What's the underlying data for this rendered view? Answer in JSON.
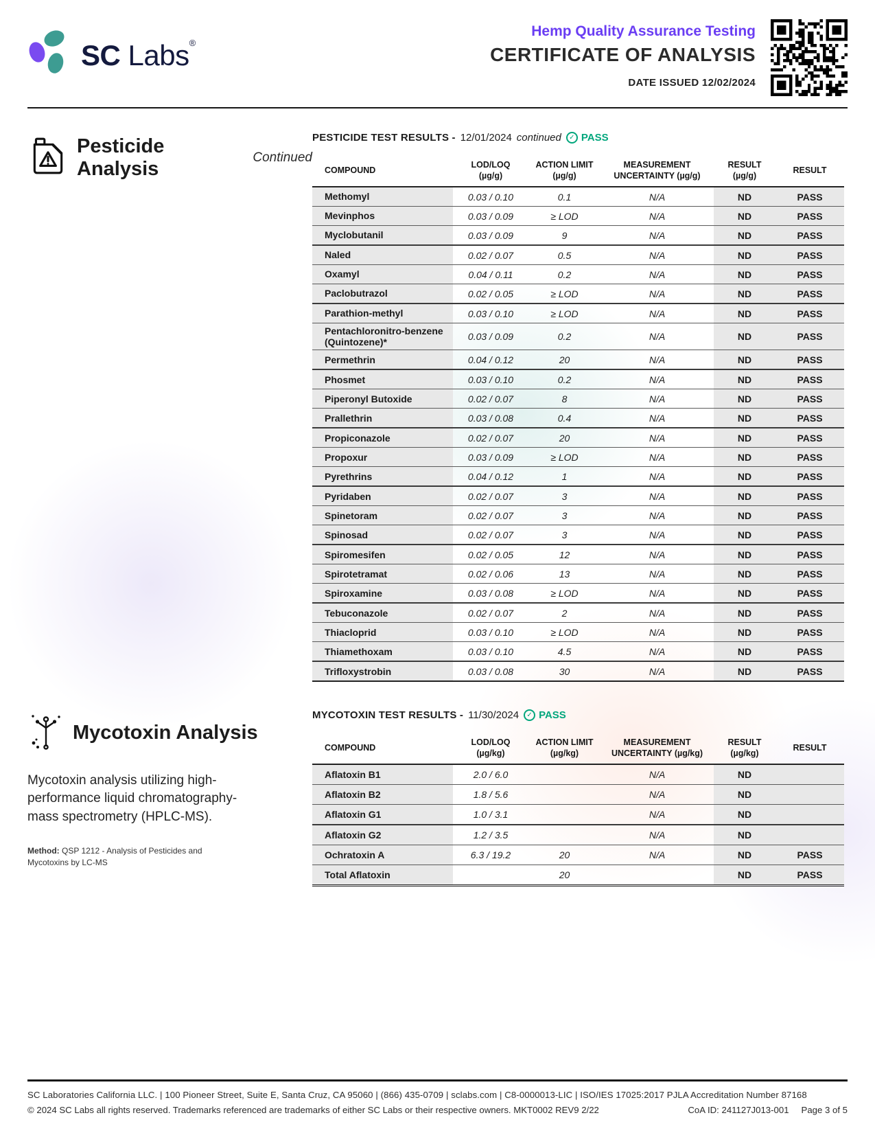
{
  "brand": {
    "name_bold": "SC",
    "name_light": "Labs",
    "reg_mark": "®"
  },
  "header": {
    "program_title": "Hemp Quality Assurance Testing",
    "doc_title": "CERTIFICATE OF ANALYSIS",
    "date_issued": "DATE ISSUED 12/02/2024"
  },
  "colors": {
    "accent_purple": "#6a3df3",
    "accent_green": "#00a67c",
    "brand_teal": "#3d9c92",
    "brand_purple": "#7a4bf0",
    "brand_navy": "#141a3e"
  },
  "pesticide": {
    "section_title": "Pesticide Analysis",
    "section_subtitle": "Continued",
    "results_title": "PESTICIDE TEST RESULTS -",
    "results_date": "12/01/2024",
    "results_suffix": "continued",
    "status": "PASS",
    "check_glyph": "✓",
    "columns": {
      "compound": {
        "line1": "COMPOUND",
        "line2": ""
      },
      "lod_loq": {
        "line1": "LOD/LOQ",
        "line2": "(µg/g)"
      },
      "action_limit": {
        "line1": "ACTION LIMIT",
        "line2": "(µg/g)"
      },
      "uncertainty": {
        "line1": "MEASUREMENT",
        "line2": "UNCERTAINTY (µg/g)"
      },
      "result_value": {
        "line1": "RESULT",
        "line2": "(µg/g)"
      },
      "result_status": {
        "line1": "RESULT",
        "line2": ""
      }
    },
    "rows": [
      {
        "compound": "Methomyl",
        "lod_loq": "0.03 / 0.10",
        "action_limit": "0.1",
        "uncertainty": "N/A",
        "result": "ND",
        "status": "PASS"
      },
      {
        "compound": "Mevinphos",
        "lod_loq": "0.03 / 0.09",
        "action_limit": "≥ LOD",
        "uncertainty": "N/A",
        "result": "ND",
        "status": "PASS"
      },
      {
        "compound": "Myclobutanil",
        "lod_loq": "0.03 / 0.09",
        "action_limit": "9",
        "uncertainty": "N/A",
        "result": "ND",
        "status": "PASS"
      },
      {
        "compound": "Naled",
        "lod_loq": "0.02 / 0.07",
        "action_limit": "0.5",
        "uncertainty": "N/A",
        "result": "ND",
        "status": "PASS"
      },
      {
        "compound": "Oxamyl",
        "lod_loq": "0.04 / 0.11",
        "action_limit": "0.2",
        "uncertainty": "N/A",
        "result": "ND",
        "status": "PASS"
      },
      {
        "compound": "Paclobutrazol",
        "lod_loq": "0.02 / 0.05",
        "action_limit": "≥ LOD",
        "uncertainty": "N/A",
        "result": "ND",
        "status": "PASS"
      },
      {
        "compound": "Parathion-methyl",
        "lod_loq": "0.03 / 0.10",
        "action_limit": "≥ LOD",
        "uncertainty": "N/A",
        "result": "ND",
        "status": "PASS"
      },
      {
        "compound": "Pentachloronitro-benzene (Quintozene)*",
        "lod_loq": "0.03 / 0.09",
        "action_limit": "0.2",
        "uncertainty": "N/A",
        "result": "ND",
        "status": "PASS"
      },
      {
        "compound": "Permethrin",
        "lod_loq": "0.04 / 0.12",
        "action_limit": "20",
        "uncertainty": "N/A",
        "result": "ND",
        "status": "PASS"
      },
      {
        "compound": "Phosmet",
        "lod_loq": "0.03 / 0.10",
        "action_limit": "0.2",
        "uncertainty": "N/A",
        "result": "ND",
        "status": "PASS"
      },
      {
        "compound": "Piperonyl Butoxide",
        "lod_loq": "0.02 / 0.07",
        "action_limit": "8",
        "uncertainty": "N/A",
        "result": "ND",
        "status": "PASS"
      },
      {
        "compound": "Prallethrin",
        "lod_loq": "0.03 / 0.08",
        "action_limit": "0.4",
        "uncertainty": "N/A",
        "result": "ND",
        "status": "PASS"
      },
      {
        "compound": "Propiconazole",
        "lod_loq": "0.02 / 0.07",
        "action_limit": "20",
        "uncertainty": "N/A",
        "result": "ND",
        "status": "PASS"
      },
      {
        "compound": "Propoxur",
        "lod_loq": "0.03 / 0.09",
        "action_limit": "≥ LOD",
        "uncertainty": "N/A",
        "result": "ND",
        "status": "PASS"
      },
      {
        "compound": "Pyrethrins",
        "lod_loq": "0.04 / 0.12",
        "action_limit": "1",
        "uncertainty": "N/A",
        "result": "ND",
        "status": "PASS"
      },
      {
        "compound": "Pyridaben",
        "lod_loq": "0.02 / 0.07",
        "action_limit": "3",
        "uncertainty": "N/A",
        "result": "ND",
        "status": "PASS"
      },
      {
        "compound": "Spinetoram",
        "lod_loq": "0.02 / 0.07",
        "action_limit": "3",
        "uncertainty": "N/A",
        "result": "ND",
        "status": "PASS"
      },
      {
        "compound": "Spinosad",
        "lod_loq": "0.02 / 0.07",
        "action_limit": "3",
        "uncertainty": "N/A",
        "result": "ND",
        "status": "PASS"
      },
      {
        "compound": "Spiromesifen",
        "lod_loq": "0.02 / 0.05",
        "action_limit": "12",
        "uncertainty": "N/A",
        "result": "ND",
        "status": "PASS"
      },
      {
        "compound": "Spirotetramat",
        "lod_loq": "0.02 / 0.06",
        "action_limit": "13",
        "uncertainty": "N/A",
        "result": "ND",
        "status": "PASS"
      },
      {
        "compound": "Spiroxamine",
        "lod_loq": "0.03 / 0.08",
        "action_limit": "≥ LOD",
        "uncertainty": "N/A",
        "result": "ND",
        "status": "PASS"
      },
      {
        "compound": "Tebuconazole",
        "lod_loq": "0.02 / 0.07",
        "action_limit": "2",
        "uncertainty": "N/A",
        "result": "ND",
        "status": "PASS"
      },
      {
        "compound": "Thiacloprid",
        "lod_loq": "0.03 / 0.10",
        "action_limit": "≥ LOD",
        "uncertainty": "N/A",
        "result": "ND",
        "status": "PASS"
      },
      {
        "compound": "Thiamethoxam",
        "lod_loq": "0.03 / 0.10",
        "action_limit": "4.5",
        "uncertainty": "N/A",
        "result": "ND",
        "status": "PASS"
      },
      {
        "compound": "Trifloxystrobin",
        "lod_loq": "0.03 / 0.08",
        "action_limit": "30",
        "uncertainty": "N/A",
        "result": "ND",
        "status": "PASS"
      }
    ]
  },
  "mycotoxin": {
    "section_title": "Mycotoxin Analysis",
    "description": "Mycotoxin analysis utilizing high-performance liquid chromatography-mass spectrometry (HPLC-MS).",
    "method_label": "Method:",
    "method_text": " QSP 1212 - Analysis of Pesticides and Mycotoxins by LC-MS",
    "results_title": "MYCOTOXIN TEST RESULTS -",
    "results_date": "11/30/2024",
    "status": "PASS",
    "check_glyph": "✓",
    "columns": {
      "compound": {
        "line1": "COMPOUND",
        "line2": ""
      },
      "lod_loq": {
        "line1": "LOD/LOQ",
        "line2": "(µg/kg)"
      },
      "action_limit": {
        "line1": "ACTION LIMIT",
        "line2": "(µg/kg)"
      },
      "uncertainty": {
        "line1": "MEASUREMENT",
        "line2": "UNCERTAINTY (µg/kg)"
      },
      "result_value": {
        "line1": "RESULT",
        "line2": "(µg/kg)"
      },
      "result_status": {
        "line1": "RESULT",
        "line2": ""
      }
    },
    "rows": [
      {
        "compound": "Aflatoxin B1",
        "lod_loq": "2.0 / 6.0",
        "action_limit": "",
        "uncertainty": "N/A",
        "result": "ND",
        "status": ""
      },
      {
        "compound": "Aflatoxin B2",
        "lod_loq": "1.8 / 5.6",
        "action_limit": "",
        "uncertainty": "N/A",
        "result": "ND",
        "status": ""
      },
      {
        "compound": "Aflatoxin G1",
        "lod_loq": "1.0 / 3.1",
        "action_limit": "",
        "uncertainty": "N/A",
        "result": "ND",
        "status": ""
      },
      {
        "compound": "Aflatoxin G2",
        "lod_loq": "1.2 / 3.5",
        "action_limit": "",
        "uncertainty": "N/A",
        "result": "ND",
        "status": ""
      },
      {
        "compound": "Ochratoxin A",
        "lod_loq": "6.3 / 19.2",
        "action_limit": "20",
        "uncertainty": "N/A",
        "result": "ND",
        "status": "PASS"
      },
      {
        "compound": "Total Aflatoxin",
        "lod_loq": "",
        "action_limit": "20",
        "uncertainty": "",
        "result": "ND",
        "status": "PASS"
      }
    ]
  },
  "footer": {
    "line1": "SC Laboratories California LLC. | 100 Pioneer Street, Suite E, Santa Cruz, CA 95060 | (866) 435-0709 | sclabs.com | C8-0000013-LIC | ISO/IES 17025:2017 PJLA Accreditation Number 87168",
    "line2_left": "© 2024 SC Labs all rights reserved. Trademarks referenced are trademarks of either SC Labs or their respective owners. MKT0002 REV9 2/22",
    "coa_id": "CoA ID: 241127J013-001",
    "page": "Page 3 of 5"
  }
}
